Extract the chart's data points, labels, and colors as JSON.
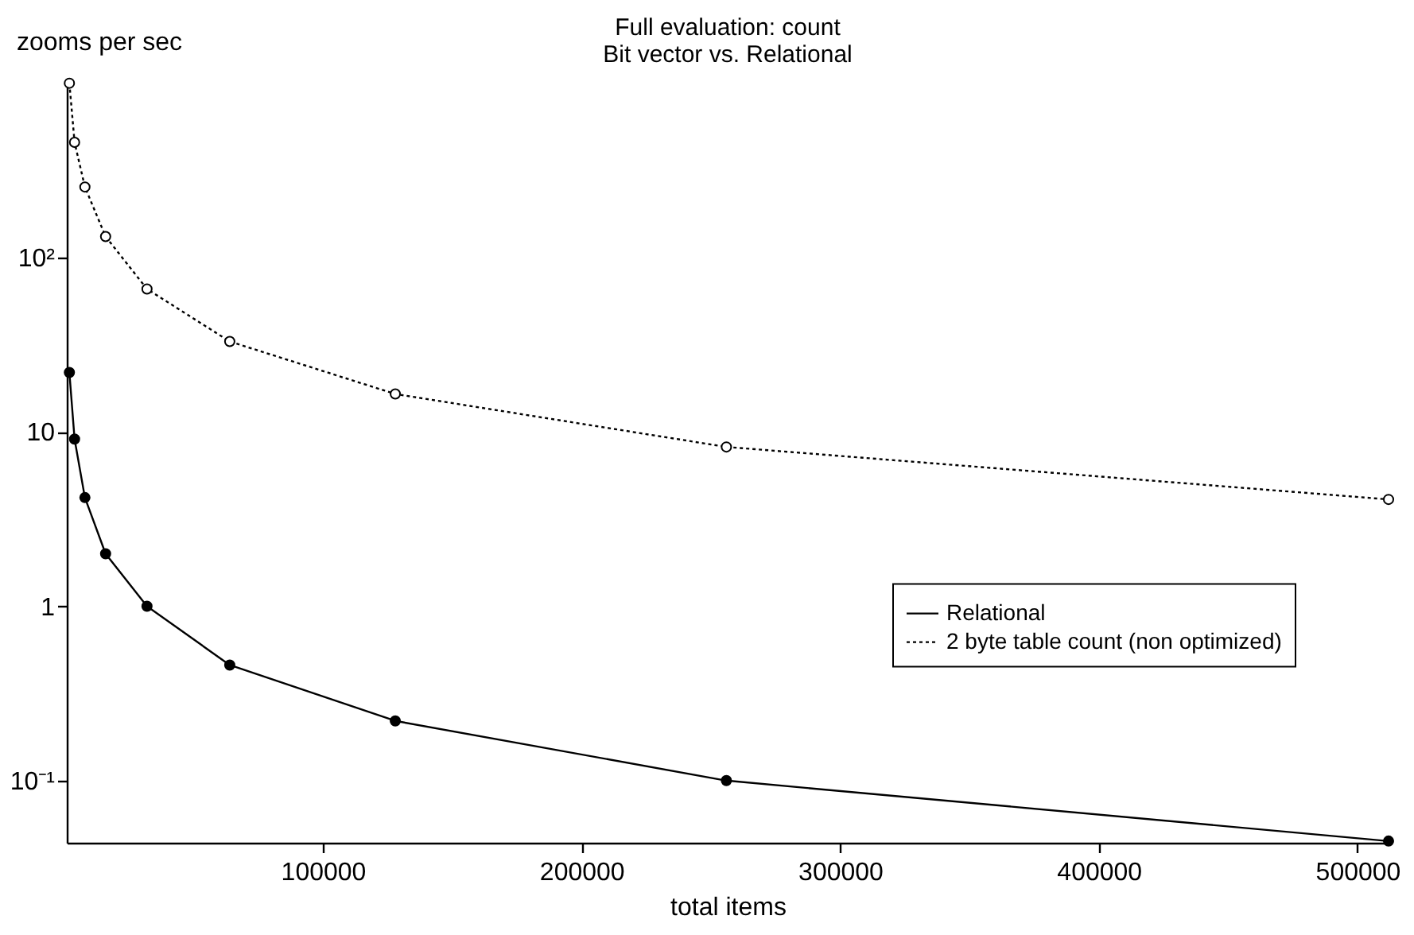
{
  "chart_data": {
    "type": "line",
    "title": "Full evaluation: count",
    "subtitle": "Bit vector vs. Relational",
    "xlabel": "total items",
    "ylabel": "zooms per sec",
    "x": [
      2000,
      4000,
      8000,
      16000,
      32000,
      64000,
      128000,
      256000,
      512000
    ],
    "series": [
      {
        "name": "Relational",
        "color": "#000000",
        "line_style": "solid",
        "values": [
          21.9,
          9.1,
          4.2,
          2.0,
          1.0,
          0.46,
          0.22,
          0.1,
          0.045
        ]
      },
      {
        "name": "2 byte table count (non optimized)",
        "color": "#000000",
        "line_style": "dotted",
        "values": [
          1000,
          458,
          254,
          132,
          66,
          33,
          16.5,
          8.2,
          4.1
        ]
      }
    ],
    "log": "y",
    "xlim": [
      1000,
      512000
    ],
    "ylim": [
      0.044,
      1050
    ],
    "xticks": [
      100000,
      200000,
      300000,
      400000,
      500000
    ],
    "yticks": [
      {
        "value": 0.1,
        "label": "10⁻¹"
      },
      1,
      10,
      {
        "value": 100,
        "label": "10²"
      }
    ],
    "grid": false,
    "legend": "right",
    "marker": "circle"
  }
}
